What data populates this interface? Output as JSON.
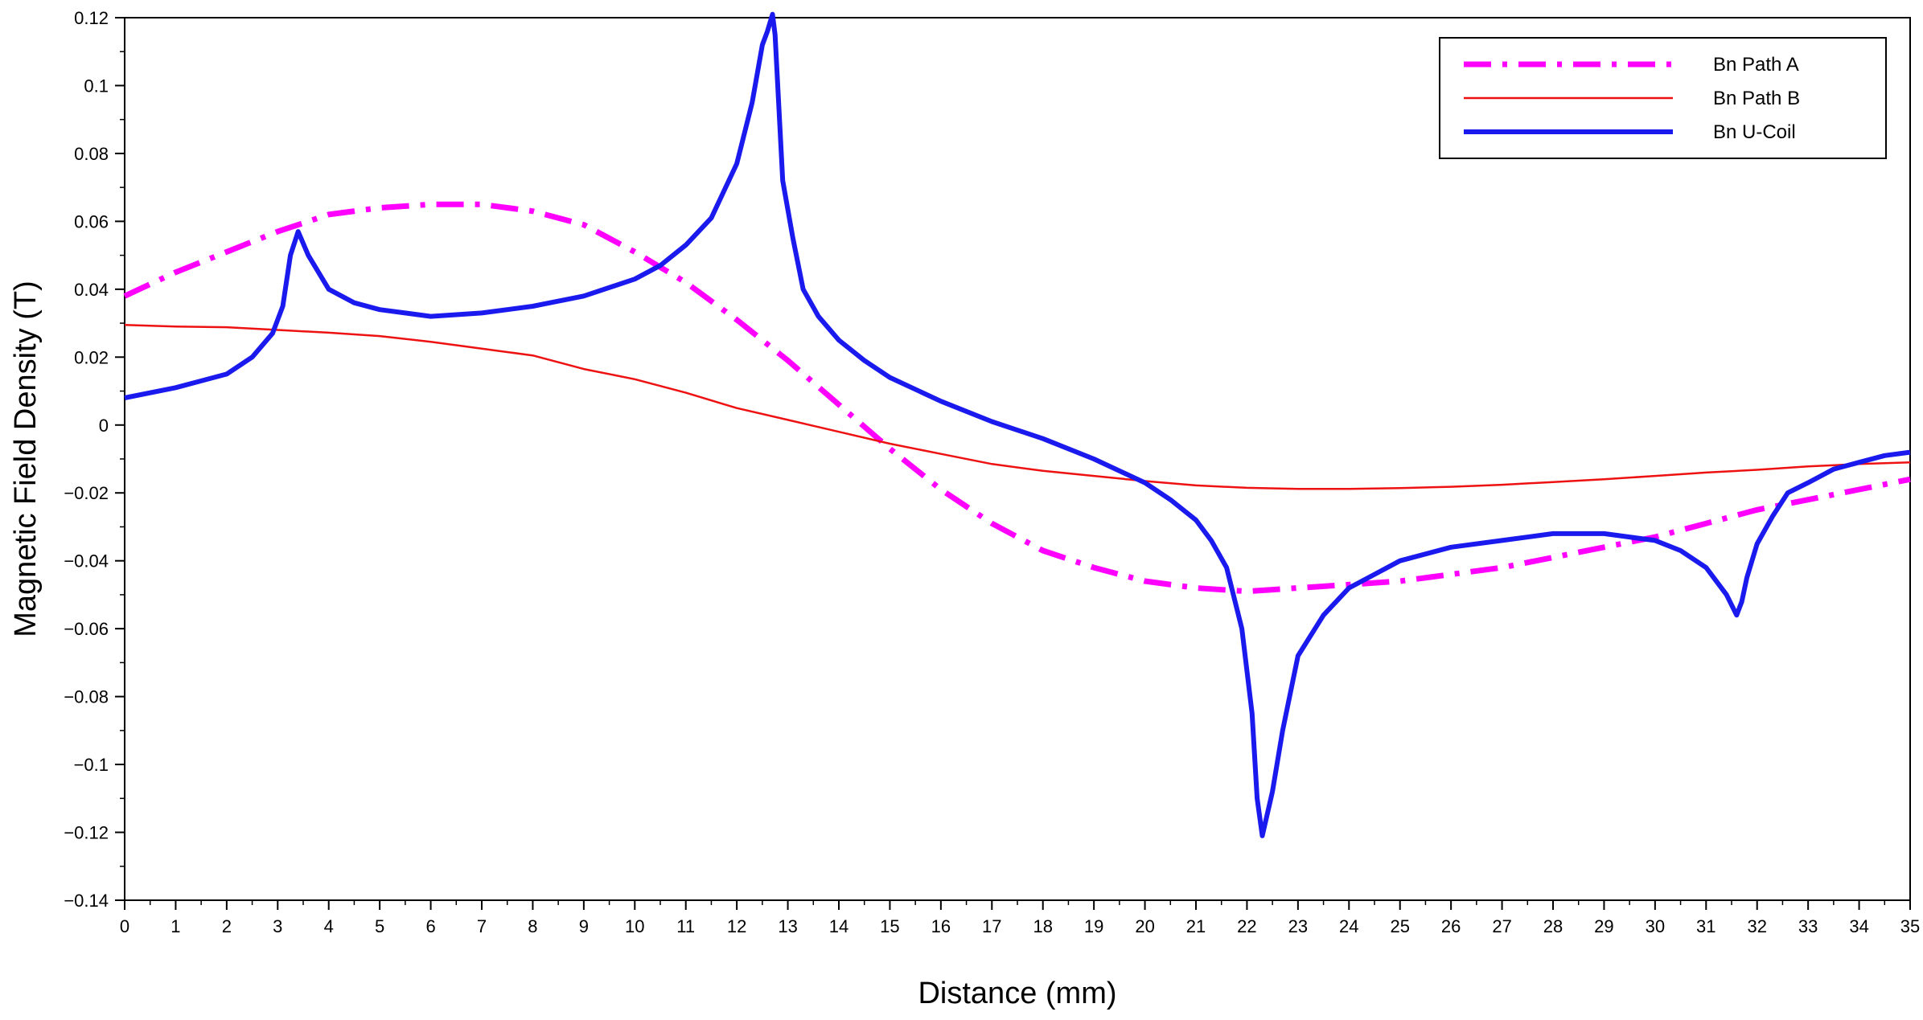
{
  "chart_data": {
    "type": "line",
    "title": "",
    "xlabel": "Distance (mm)",
    "ylabel": "Magnetic Field Density (T)",
    "xlim": [
      0,
      35
    ],
    "ylim": [
      -0.14,
      0.12
    ],
    "x_ticks": [
      0,
      1,
      2,
      3,
      4,
      5,
      6,
      7,
      8,
      9,
      10,
      11,
      12,
      13,
      14,
      15,
      16,
      17,
      18,
      19,
      20,
      21,
      22,
      23,
      24,
      25,
      26,
      27,
      28,
      29,
      30,
      31,
      32,
      33,
      34,
      35
    ],
    "y_ticks": [
      0.12,
      0.1,
      0.08,
      0.06,
      0.04,
      0.02,
      0,
      -0.02,
      -0.04,
      -0.06,
      -0.08,
      -0.1,
      -0.12,
      -0.14
    ],
    "y_tick_labels": [
      "0.12",
      "0.1",
      "0.08",
      "0.06",
      "0.04",
      "0.02",
      "0",
      "−0.02",
      "−0.04",
      "−0.06",
      "−0.08",
      "−0.1",
      "−0.12",
      "−0.14"
    ],
    "grid": false,
    "legend_position": "top-right",
    "series": [
      {
        "name": "Bn Path A",
        "color": "#ff00ff",
        "style": "dashdot",
        "x": [
          0,
          1,
          2,
          3,
          4,
          5,
          6,
          7,
          8,
          9,
          10,
          11,
          12,
          13,
          14,
          15,
          16,
          17,
          18,
          19,
          20,
          21,
          22,
          23,
          24,
          25,
          26,
          27,
          28,
          29,
          30,
          31,
          32,
          33,
          34,
          35
        ],
        "y": [
          0.038,
          0.045,
          0.051,
          0.057,
          0.062,
          0.064,
          0.065,
          0.065,
          0.063,
          0.059,
          0.051,
          0.042,
          0.031,
          0.019,
          0.006,
          -0.007,
          -0.019,
          -0.029,
          -0.037,
          -0.042,
          -0.046,
          -0.048,
          -0.049,
          -0.048,
          -0.047,
          -0.046,
          -0.044,
          -0.042,
          -0.039,
          -0.036,
          -0.033,
          -0.029,
          -0.025,
          -0.022,
          -0.019,
          -0.016
        ]
      },
      {
        "name": "Bn Path B",
        "color": "#ee1111",
        "style": "solid",
        "x": [
          0,
          1,
          2,
          3,
          4,
          5,
          6,
          7,
          8,
          9,
          10,
          11,
          12,
          13,
          14,
          15,
          16,
          17,
          18,
          19,
          20,
          21,
          22,
          23,
          24,
          25,
          26,
          27,
          28,
          29,
          30,
          31,
          32,
          33,
          34,
          35
        ],
        "y": [
          0.0295,
          0.029,
          0.0288,
          0.028,
          0.0272,
          0.0262,
          0.0245,
          0.0225,
          0.0205,
          0.0165,
          0.0135,
          0.0095,
          0.005,
          0.0015,
          -0.002,
          -0.0055,
          -0.0085,
          -0.0115,
          -0.0135,
          -0.015,
          -0.0165,
          -0.0178,
          -0.0185,
          -0.0188,
          -0.0188,
          -0.0186,
          -0.0182,
          -0.0176,
          -0.0168,
          -0.016,
          -0.015,
          -0.014,
          -0.0132,
          -0.0122,
          -0.0115,
          -0.011
        ]
      },
      {
        "name": "Bn U-Coil",
        "color": "#1a1aee",
        "style": "solid",
        "x": [
          0,
          1,
          2,
          2.5,
          2.9,
          3.1,
          3.25,
          3.4,
          3.6,
          4,
          4.5,
          5,
          6,
          7,
          8,
          9,
          10,
          10.5,
          11,
          11.5,
          12,
          12.3,
          12.5,
          12.6,
          12.7,
          12.75,
          12.9,
          13.1,
          13.3,
          13.6,
          14,
          14.5,
          15,
          16,
          17,
          18,
          19,
          20,
          20.5,
          21,
          21.3,
          21.6,
          21.9,
          22.1,
          22.2,
          22.3,
          22.5,
          22.7,
          23,
          23.5,
          24,
          24.5,
          25,
          26,
          27,
          28,
          29,
          30,
          30.5,
          31,
          31.4,
          31.6,
          31.7,
          31.8,
          32,
          32.3,
          32.6,
          33,
          33.5,
          34,
          34.5,
          35
        ],
        "y": [
          0.008,
          0.011,
          0.015,
          0.02,
          0.027,
          0.035,
          0.05,
          0.057,
          0.05,
          0.04,
          0.036,
          0.034,
          0.032,
          0.033,
          0.035,
          0.038,
          0.043,
          0.047,
          0.053,
          0.061,
          0.077,
          0.095,
          0.112,
          0.116,
          0.121,
          0.115,
          0.072,
          0.055,
          0.04,
          0.032,
          0.025,
          0.019,
          0.014,
          0.007,
          0.001,
          -0.004,
          -0.01,
          -0.017,
          -0.022,
          -0.028,
          -0.034,
          -0.042,
          -0.06,
          -0.085,
          -0.11,
          -0.121,
          -0.108,
          -0.09,
          -0.068,
          -0.056,
          -0.048,
          -0.044,
          -0.04,
          -0.036,
          -0.034,
          -0.032,
          -0.032,
          -0.034,
          -0.037,
          -0.042,
          -0.05,
          -0.056,
          -0.052,
          -0.045,
          -0.035,
          -0.027,
          -0.02,
          -0.017,
          -0.013,
          -0.011,
          -0.009,
          -0.008
        ]
      }
    ]
  }
}
